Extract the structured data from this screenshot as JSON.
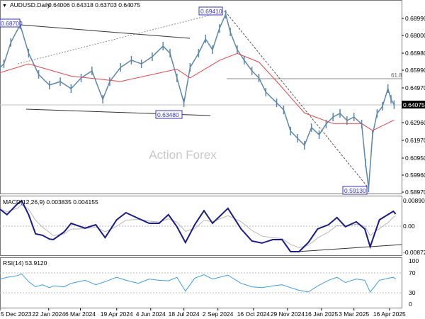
{
  "header": {
    "symbol": "AUDUSD.Daily",
    "ohlc": "0.64006 0.64318 0.63703 0.64075"
  },
  "watermark": "Action Forex",
  "annotations": {
    "high1": "0.68700",
    "high2": "0.69410",
    "low1": "0.63480",
    "low2": "0.59130",
    "fib": "61.8"
  },
  "colors": {
    "price": "#5b87a8",
    "ma": "#e8434a",
    "macd": "#1a1a8c",
    "signal": "#b8b8b8",
    "rsi": "#3d9be9"
  },
  "chart_data": [
    {
      "type": "line",
      "title": "AUDUSD.Daily",
      "price_axis_labels": [
        "0.68990",
        "0.68000",
        "0.66980",
        "0.65990",
        "0.64970",
        "0.62960",
        "0.61970",
        "0.60950",
        "0.59960",
        "0.58970"
      ],
      "current_price": "0.64075",
      "ylim": [
        0.5897,
        0.6899
      ],
      "x_unit": "days since 5 Dec 2023",
      "x_tick_labels": [
        {
          "label": "5 Dec 2023",
          "day": 0
        },
        {
          "label": "22 Jan 2024",
          "day": 63
        },
        {
          "label": "6 Mar 2024",
          "day": 104
        },
        {
          "label": "19 Apr 2024",
          "day": 151
        },
        {
          "label": "4 Jun 2024",
          "day": 195
        },
        {
          "label": "18 Jul 2024",
          "day": 238
        },
        {
          "label": "2 Sep 2024",
          "day": 282
        },
        {
          "label": "16 Oct 2024",
          "day": 328
        },
        {
          "label": "29 Nov 2024",
          "day": 372
        },
        {
          "label": "16 Jan 2025",
          "day": 416
        },
        {
          "label": "3 Mar 2025",
          "day": 458
        },
        {
          "label": "16 Apr 2025",
          "day": 504
        }
      ],
      "series": [
        {
          "name": "AUDUSD close",
          "day": [
            0,
            5,
            14,
            26,
            37,
            50,
            64,
            78,
            92,
            105,
            119,
            133,
            142,
            156,
            170,
            183,
            197,
            211,
            220,
            229,
            238,
            246,
            257,
            266,
            275,
            284,
            292,
            298,
            307,
            316,
            326,
            335,
            344,
            358,
            367,
            376,
            385,
            394,
            403,
            413,
            422,
            431,
            440,
            449,
            458,
            468,
            473,
            477,
            482,
            488,
            495,
            502,
            506,
            510
          ],
          "values": [
            0.662,
            0.664,
            0.6762,
            0.6863,
            0.6701,
            0.658,
            0.6519,
            0.6539,
            0.6499,
            0.656,
            0.66,
            0.6438,
            0.6539,
            0.662,
            0.6661,
            0.664,
            0.6681,
            0.6741,
            0.6701,
            0.656,
            0.6418,
            0.662,
            0.6701,
            0.6782,
            0.6721,
            0.6842,
            0.6923,
            0.6822,
            0.6721,
            0.6661,
            0.66,
            0.656,
            0.6479,
            0.6418,
            0.6378,
            0.6257,
            0.6216,
            0.6176,
            0.6277,
            0.6236,
            0.6297,
            0.6337,
            0.6358,
            0.6317,
            0.6337,
            0.6297,
            0.6075,
            0.5933,
            0.6236,
            0.6358,
            0.6398,
            0.6499,
            0.6438,
            0.6407
          ]
        },
        {
          "name": "Moving average",
          "day": [
            0,
            37,
            92,
            156,
            229,
            246,
            284,
            307,
            335,
            358,
            394,
            431,
            468,
            482,
            510
          ],
          "values": [
            0.659,
            0.664,
            0.657,
            0.654,
            0.661,
            0.656,
            0.666,
            0.67,
            0.665,
            0.654,
            0.636,
            0.63,
            0.63,
            0.626,
            0.632
          ]
        }
      ]
    },
    {
      "type": "line",
      "title": "MACD(12,26,9) 0.003835 0.004155",
      "axis_labels": [
        "0.008901",
        "0.00",
        "-0.008729"
      ],
      "ylim": [
        -0.008729,
        0.008901
      ],
      "series": [
        {
          "name": "MACD",
          "day": [
            0,
            9,
            23,
            28,
            37,
            46,
            55,
            64,
            69,
            83,
            92,
            110,
            124,
            136,
            151,
            163,
            179,
            193,
            206,
            218,
            229,
            240,
            252,
            264,
            275,
            295,
            312,
            326,
            339,
            353,
            365,
            376,
            387,
            399,
            411,
            425,
            436,
            447,
            461,
            472,
            479,
            491,
            503,
            509,
            512
          ],
          "values": [
            0.0059,
            0.004,
            0.0079,
            0.0089,
            0.004,
            -0.0027,
            -0.0032,
            -0.0045,
            -0.0047,
            -0.002,
            0.001,
            -0.0007,
            0.0005,
            -0.004,
            0.0022,
            0.0047,
            0.0027,
            0.001,
            0.001,
            0.004,
            -0.0002,
            -0.0057,
            0.0005,
            0.0054,
            0.001,
            0.0062,
            -0.001,
            -0.0052,
            -0.0059,
            -0.0047,
            -0.0047,
            -0.0089,
            -0.0089,
            -0.0057,
            -0.001,
            0.0005,
            0.003,
            -0.0002,
            0.0015,
            -0.001,
            -0.0072,
            0.0022,
            0.0042,
            0.0052,
            0.0042
          ]
        }
      ]
    },
    {
      "type": "line",
      "title": "RSI(14) 53.9120",
      "axis_labels": [
        "100",
        "70",
        "30",
        "0"
      ],
      "ylim": [
        0,
        100
      ],
      "series": [
        {
          "name": "RSI",
          "day": [
            0,
            9,
            23,
            28,
            37,
            46,
            55,
            64,
            69,
            83,
            92,
            110,
            124,
            136,
            151,
            163,
            179,
            193,
            206,
            218,
            229,
            240,
            252,
            264,
            275,
            295,
            312,
            326,
            339,
            353,
            365,
            376,
            387,
            399,
            411,
            425,
            436,
            447,
            461,
            472,
            479,
            491,
            503,
            509,
            512
          ],
          "values": [
            58,
            62,
            66,
            70,
            52,
            40,
            45,
            38,
            42,
            40,
            48,
            55,
            45,
            52,
            62,
            55,
            48,
            58,
            55,
            54,
            62,
            30,
            60,
            68,
            58,
            67,
            48,
            40,
            38,
            42,
            45,
            38,
            32,
            28,
            42,
            55,
            62,
            50,
            58,
            55,
            28,
            55,
            60,
            62,
            58
          ]
        }
      ]
    }
  ]
}
